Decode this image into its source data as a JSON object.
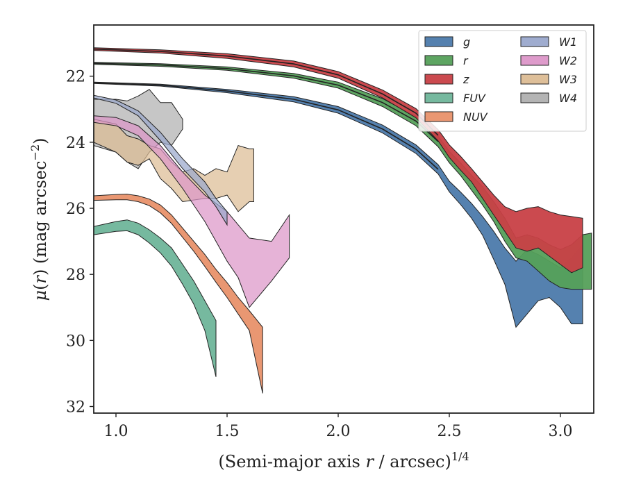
{
  "chart_data": {
    "type": "area",
    "xlabel": "(Semi-major axis r / arcsec)^{1/4}",
    "ylabel": "μ(r) (mag arcsec^{−2})",
    "xlim": [
      0.9,
      3.15
    ],
    "ylim": [
      32.2,
      20.45
    ],
    "y_inverted": true,
    "xticks": [
      1.0,
      1.5,
      2.0,
      2.5,
      3.0
    ],
    "xtick_labels": [
      "1.0",
      "1.5",
      "2.0",
      "2.5",
      "3.0"
    ],
    "yticks": [
      22,
      24,
      26,
      28,
      30,
      32
    ],
    "ytick_labels": [
      "22",
      "24",
      "26",
      "28",
      "30",
      "32"
    ],
    "grid": false,
    "legend_position": "top-right",
    "legend_columns": 2,
    "series": [
      {
        "name": "g",
        "color": "#4c7aab",
        "upper": [
          [
            0.9,
            22.18
          ],
          [
            1.2,
            22.24
          ],
          [
            1.5,
            22.4
          ],
          [
            1.8,
            22.62
          ],
          [
            2.0,
            22.92
          ],
          [
            2.2,
            23.48
          ],
          [
            2.35,
            24.08
          ],
          [
            2.45,
            24.68
          ],
          [
            2.5,
            25.18
          ],
          [
            2.55,
            25.5
          ],
          [
            2.6,
            25.85
          ],
          [
            2.65,
            26.25
          ],
          [
            2.7,
            26.7
          ],
          [
            2.75,
            27.2
          ],
          [
            2.8,
            27.6
          ],
          [
            2.85,
            27.25
          ],
          [
            2.9,
            27.4
          ],
          [
            2.95,
            27.6
          ],
          [
            3.0,
            27.8
          ],
          [
            3.05,
            27.5
          ],
          [
            3.1,
            27.1
          ]
        ],
        "lower": [
          [
            0.9,
            22.22
          ],
          [
            1.2,
            22.3
          ],
          [
            1.5,
            22.5
          ],
          [
            1.8,
            22.78
          ],
          [
            2.0,
            23.12
          ],
          [
            2.2,
            23.72
          ],
          [
            2.35,
            24.34
          ],
          [
            2.45,
            24.96
          ],
          [
            2.5,
            25.5
          ],
          [
            2.55,
            25.88
          ],
          [
            2.6,
            26.3
          ],
          [
            2.65,
            26.82
          ],
          [
            2.7,
            27.55
          ],
          [
            2.75,
            28.3
          ],
          [
            2.8,
            29.6
          ],
          [
            2.85,
            29.2
          ],
          [
            2.9,
            28.8
          ],
          [
            2.95,
            28.7
          ],
          [
            3.0,
            29.0
          ],
          [
            3.05,
            29.5
          ],
          [
            3.1,
            29.5
          ]
        ]
      },
      {
        "name": "r",
        "color": "#55a05a",
        "upper": [
          [
            0.9,
            21.58
          ],
          [
            1.2,
            21.62
          ],
          [
            1.5,
            21.72
          ],
          [
            1.8,
            21.92
          ],
          [
            2.0,
            22.18
          ],
          [
            2.2,
            22.68
          ],
          [
            2.35,
            23.22
          ],
          [
            2.45,
            23.82
          ],
          [
            2.5,
            24.28
          ],
          [
            2.55,
            24.62
          ],
          [
            2.6,
            25.0
          ],
          [
            2.65,
            25.35
          ],
          [
            2.7,
            25.8
          ],
          [
            2.75,
            26.3
          ],
          [
            2.8,
            26.9
          ],
          [
            2.85,
            26.8
          ],
          [
            2.9,
            26.9
          ],
          [
            2.95,
            27.1
          ],
          [
            3.0,
            27.25
          ],
          [
            3.05,
            27.1
          ],
          [
            3.1,
            26.8
          ],
          [
            3.14,
            26.75
          ]
        ],
        "lower": [
          [
            0.9,
            21.64
          ],
          [
            1.2,
            21.7
          ],
          [
            1.5,
            21.82
          ],
          [
            1.8,
            22.06
          ],
          [
            2.0,
            22.36
          ],
          [
            2.2,
            22.92
          ],
          [
            2.35,
            23.5
          ],
          [
            2.45,
            24.14
          ],
          [
            2.5,
            24.62
          ],
          [
            2.55,
            25.0
          ],
          [
            2.6,
            25.45
          ],
          [
            2.65,
            25.9
          ],
          [
            2.7,
            26.4
          ],
          [
            2.75,
            27.0
          ],
          [
            2.8,
            27.5
          ],
          [
            2.85,
            27.6
          ],
          [
            2.9,
            27.9
          ],
          [
            2.95,
            28.2
          ],
          [
            3.0,
            28.4
          ],
          [
            3.05,
            28.45
          ],
          [
            3.1,
            28.45
          ],
          [
            3.14,
            28.45
          ]
        ]
      },
      {
        "name": "z",
        "color": "#c84046",
        "upper": [
          [
            0.9,
            21.14
          ],
          [
            1.2,
            21.2
          ],
          [
            1.5,
            21.32
          ],
          [
            1.8,
            21.54
          ],
          [
            2.0,
            21.86
          ],
          [
            2.2,
            22.42
          ],
          [
            2.35,
            22.98
          ],
          [
            2.45,
            23.62
          ],
          [
            2.5,
            24.08
          ],
          [
            2.55,
            24.42
          ],
          [
            2.6,
            24.8
          ],
          [
            2.65,
            25.2
          ],
          [
            2.7,
            25.6
          ],
          [
            2.75,
            25.95
          ],
          [
            2.8,
            26.1
          ],
          [
            2.85,
            26.0
          ],
          [
            2.9,
            25.95
          ],
          [
            2.95,
            26.1
          ],
          [
            3.0,
            26.2
          ],
          [
            3.05,
            26.25
          ],
          [
            3.1,
            26.3
          ]
        ],
        "lower": [
          [
            0.9,
            21.22
          ],
          [
            1.2,
            21.3
          ],
          [
            1.5,
            21.46
          ],
          [
            1.8,
            21.72
          ],
          [
            2.0,
            22.06
          ],
          [
            2.2,
            22.66
          ],
          [
            2.35,
            23.26
          ],
          [
            2.45,
            23.96
          ],
          [
            2.5,
            24.46
          ],
          [
            2.55,
            24.84
          ],
          [
            2.6,
            25.2
          ],
          [
            2.65,
            25.7
          ],
          [
            2.7,
            26.2
          ],
          [
            2.75,
            26.7
          ],
          [
            2.8,
            27.2
          ],
          [
            2.85,
            27.3
          ],
          [
            2.9,
            27.2
          ],
          [
            2.95,
            27.45
          ],
          [
            3.0,
            27.7
          ],
          [
            3.05,
            27.95
          ],
          [
            3.1,
            27.8
          ]
        ]
      },
      {
        "name": "FUV",
        "color": "#6fb59a",
        "upper": [
          [
            0.9,
            26.55
          ],
          [
            1.0,
            26.4
          ],
          [
            1.05,
            26.35
          ],
          [
            1.1,
            26.45
          ],
          [
            1.15,
            26.65
          ],
          [
            1.2,
            26.9
          ],
          [
            1.25,
            27.2
          ],
          [
            1.3,
            27.7
          ],
          [
            1.35,
            28.2
          ],
          [
            1.4,
            28.8
          ],
          [
            1.45,
            29.4
          ]
        ],
        "lower": [
          [
            0.9,
            26.8
          ],
          [
            1.0,
            26.7
          ],
          [
            1.05,
            26.68
          ],
          [
            1.1,
            26.8
          ],
          [
            1.15,
            27.05
          ],
          [
            1.2,
            27.35
          ],
          [
            1.25,
            27.75
          ],
          [
            1.3,
            28.3
          ],
          [
            1.35,
            28.9
          ],
          [
            1.4,
            29.7
          ],
          [
            1.45,
            31.1
          ]
        ]
      },
      {
        "name": "NUV",
        "color": "#e8916a",
        "upper": [
          [
            0.9,
            25.62
          ],
          [
            1.0,
            25.58
          ],
          [
            1.05,
            25.57
          ],
          [
            1.1,
            25.62
          ],
          [
            1.15,
            25.72
          ],
          [
            1.2,
            25.9
          ],
          [
            1.25,
            26.2
          ],
          [
            1.3,
            26.6
          ],
          [
            1.35,
            27.0
          ],
          [
            1.4,
            27.4
          ],
          [
            1.45,
            27.85
          ],
          [
            1.5,
            28.25
          ],
          [
            1.55,
            28.7
          ],
          [
            1.6,
            29.1
          ],
          [
            1.66,
            29.6
          ]
        ],
        "lower": [
          [
            0.9,
            25.76
          ],
          [
            1.0,
            25.74
          ],
          [
            1.05,
            25.74
          ],
          [
            1.1,
            25.8
          ],
          [
            1.15,
            25.92
          ],
          [
            1.2,
            26.14
          ],
          [
            1.25,
            26.46
          ],
          [
            1.3,
            26.88
          ],
          [
            1.35,
            27.3
          ],
          [
            1.4,
            27.76
          ],
          [
            1.45,
            28.24
          ],
          [
            1.5,
            28.7
          ],
          [
            1.55,
            29.2
          ],
          [
            1.6,
            29.7
          ],
          [
            1.66,
            31.6
          ]
        ]
      },
      {
        "name": "W1",
        "color": "#9aa8cc",
        "upper": [
          [
            0.9,
            22.58
          ],
          [
            1.0,
            22.72
          ],
          [
            1.1,
            23.05
          ],
          [
            1.2,
            23.7
          ],
          [
            1.3,
            24.5
          ],
          [
            1.4,
            25.2
          ],
          [
            1.45,
            25.7
          ],
          [
            1.5,
            26.1
          ]
        ],
        "lower": [
          [
            0.9,
            22.66
          ],
          [
            1.0,
            22.82
          ],
          [
            1.1,
            23.2
          ],
          [
            1.2,
            23.95
          ],
          [
            1.3,
            24.8
          ],
          [
            1.4,
            25.5
          ],
          [
            1.45,
            25.95
          ],
          [
            1.5,
            26.5
          ]
        ]
      },
      {
        "name": "W2",
        "color": "#dc96c8",
        "upper": [
          [
            0.9,
            23.2
          ],
          [
            1.0,
            23.25
          ],
          [
            1.1,
            23.5
          ],
          [
            1.2,
            24.1
          ],
          [
            1.3,
            24.9
          ],
          [
            1.4,
            25.6
          ],
          [
            1.5,
            26.1
          ],
          [
            1.55,
            26.5
          ],
          [
            1.6,
            26.9
          ],
          [
            1.7,
            27.0
          ],
          [
            1.78,
            26.2
          ]
        ],
        "lower": [
          [
            0.9,
            23.4
          ],
          [
            1.0,
            23.5
          ],
          [
            1.1,
            23.8
          ],
          [
            1.2,
            24.5
          ],
          [
            1.3,
            25.4
          ],
          [
            1.4,
            26.4
          ],
          [
            1.45,
            27.0
          ],
          [
            1.5,
            27.6
          ],
          [
            1.55,
            28.1
          ],
          [
            1.6,
            29.0
          ],
          [
            1.7,
            28.2
          ],
          [
            1.78,
            27.5
          ]
        ]
      },
      {
        "name": "W3",
        "color": "#dcbc94",
        "upper": [
          [
            0.9,
            23.3
          ],
          [
            1.0,
            23.45
          ],
          [
            1.05,
            23.8
          ],
          [
            1.1,
            23.9
          ],
          [
            1.15,
            24.1
          ],
          [
            1.2,
            24.2
          ],
          [
            1.25,
            24.6
          ],
          [
            1.3,
            24.9
          ],
          [
            1.35,
            24.8
          ],
          [
            1.4,
            25.0
          ],
          [
            1.45,
            24.8
          ],
          [
            1.5,
            24.9
          ],
          [
            1.55,
            24.1
          ],
          [
            1.6,
            24.2
          ],
          [
            1.62,
            24.2
          ]
        ],
        "lower": [
          [
            0.9,
            24.0
          ],
          [
            1.0,
            24.3
          ],
          [
            1.05,
            24.6
          ],
          [
            1.1,
            24.7
          ],
          [
            1.15,
            24.5
          ],
          [
            1.2,
            25.1
          ],
          [
            1.25,
            25.4
          ],
          [
            1.3,
            25.8
          ],
          [
            1.35,
            25.75
          ],
          [
            1.4,
            25.7
          ],
          [
            1.45,
            25.7
          ],
          [
            1.5,
            25.6
          ],
          [
            1.55,
            26.1
          ],
          [
            1.6,
            25.8
          ],
          [
            1.62,
            25.8
          ]
        ]
      },
      {
        "name": "W4",
        "color": "#b0b0b0",
        "upper": [
          [
            0.9,
            22.7
          ],
          [
            1.0,
            22.7
          ],
          [
            1.05,
            22.75
          ],
          [
            1.1,
            22.6
          ],
          [
            1.15,
            22.4
          ],
          [
            1.2,
            22.8
          ],
          [
            1.25,
            22.8
          ],
          [
            1.3,
            23.3
          ]
        ],
        "lower": [
          [
            0.9,
            24.1
          ],
          [
            1.0,
            24.3
          ],
          [
            1.05,
            24.6
          ],
          [
            1.1,
            24.8
          ],
          [
            1.15,
            24.3
          ],
          [
            1.2,
            24.0
          ],
          [
            1.25,
            24.1
          ],
          [
            1.3,
            23.6
          ]
        ]
      }
    ],
    "median_profiles": [
      [
        [
          0.9,
          21.18
        ],
        [
          1.2,
          21.25
        ],
        [
          1.5,
          21.39
        ],
        [
          1.8,
          21.63
        ],
        [
          2.0,
          21.96
        ],
        [
          2.2,
          22.54
        ],
        [
          2.35,
          23.12
        ],
        [
          2.45,
          23.79
        ]
      ],
      [
        [
          0.9,
          21.61
        ],
        [
          1.2,
          21.66
        ],
        [
          1.5,
          21.77
        ],
        [
          1.8,
          21.99
        ],
        [
          2.0,
          22.27
        ],
        [
          2.2,
          22.8
        ],
        [
          2.35,
          23.36
        ],
        [
          2.45,
          23.98
        ]
      ],
      [
        [
          0.9,
          22.2
        ],
        [
          1.2,
          22.27
        ],
        [
          1.5,
          22.45
        ],
        [
          1.8,
          22.7
        ],
        [
          2.0,
          23.02
        ],
        [
          2.2,
          23.6
        ],
        [
          2.35,
          24.21
        ],
        [
          2.45,
          24.82
        ]
      ]
    ]
  }
}
